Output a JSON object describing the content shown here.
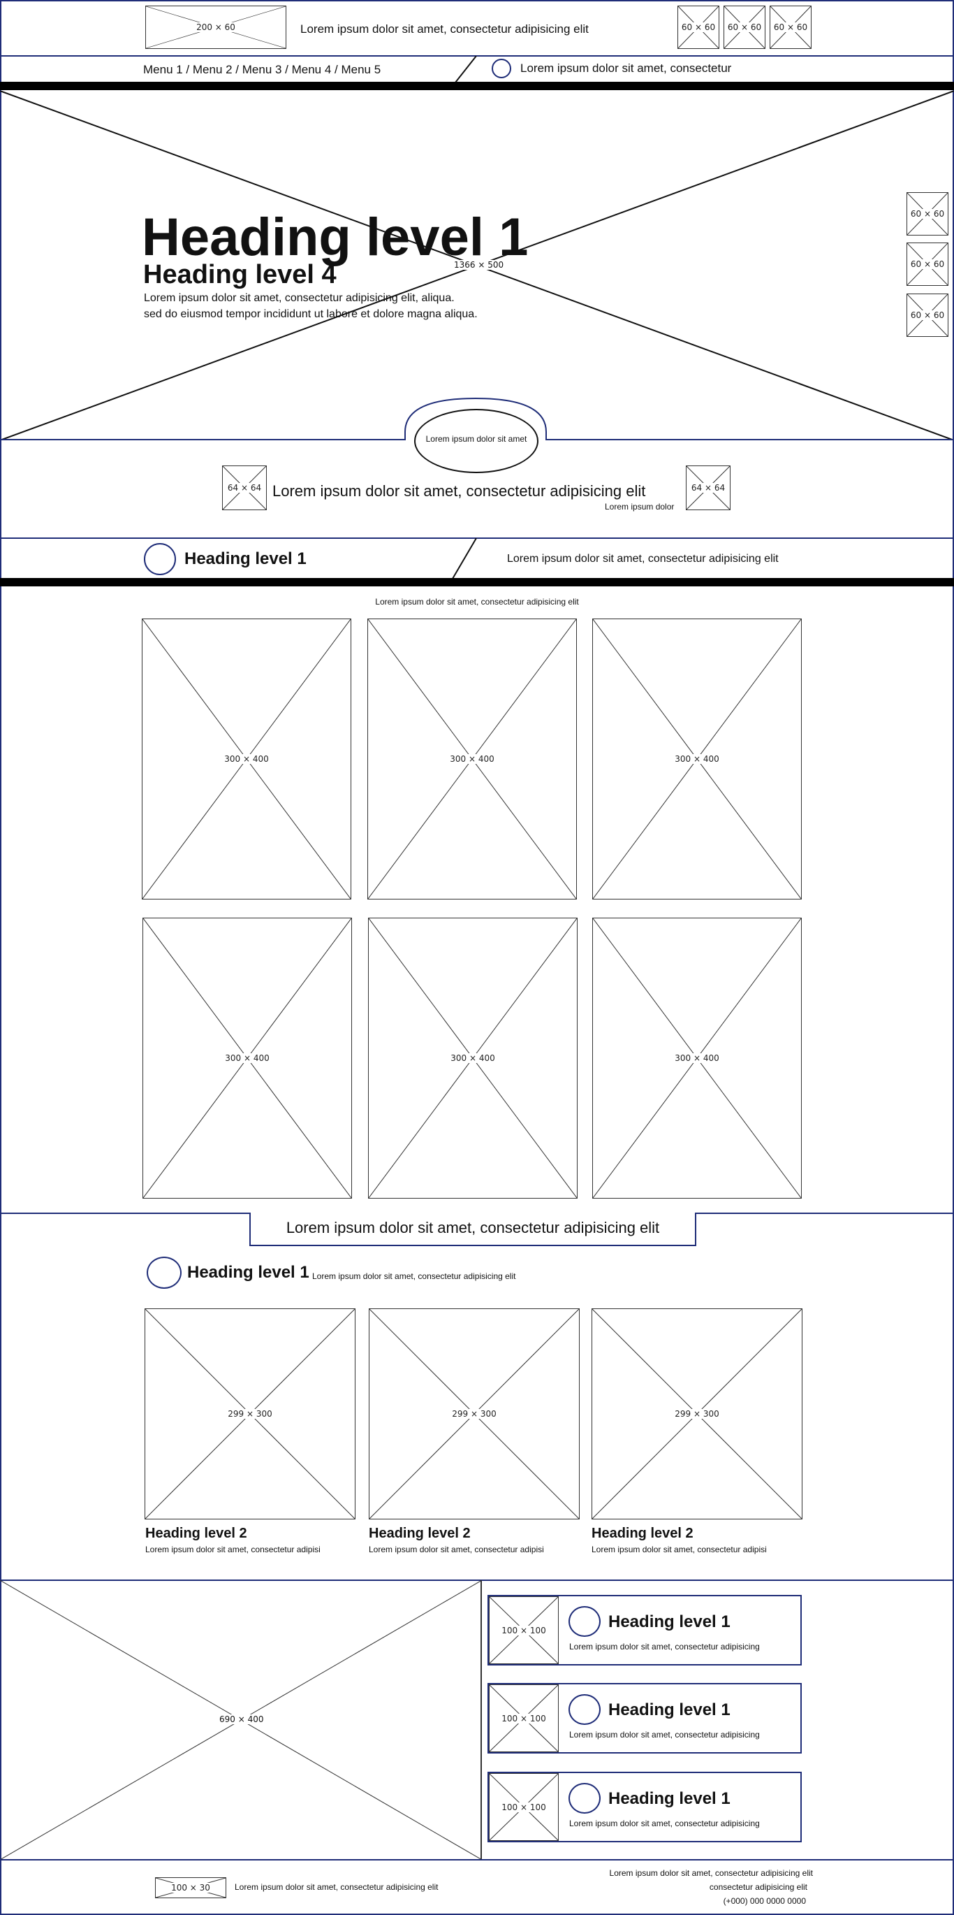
{
  "header": {
    "logo_caption": "200 × 60",
    "tagline": "Lorem ipsum dolor sit amet, consectetur adipisicing elit",
    "icons": [
      "60 × 60",
      "60 × 60",
      "60 × 60"
    ]
  },
  "nav": {
    "menu": "Menu 1 / Menu 2 / Menu 3 / Menu 4 / Menu 5",
    "info": "Lorem ipsum dolor sit amet, consectetur"
  },
  "hero": {
    "caption": "1366 × 500",
    "heading1": "Heading level 1",
    "heading4": "Heading level 4",
    "body_line1": "Lorem ipsum dolor sit amet, consectetur adipisicing elit, aliqua.",
    "body_line2": "sed do eiusmod tempor incididunt ut labore et dolore magna aliqua.",
    "side_icons": [
      "60 × 60",
      "60 × 60",
      "60 × 60"
    ],
    "pill_text": "Lorem ipsum dolor sit amet"
  },
  "strip": {
    "left_icon": "64 × 64",
    "text": "Lorem ipsum dolor sit amet, consectetur adipisicing elit",
    "small": "Lorem ipsum dolor",
    "right_icon": "64 × 64"
  },
  "section2": {
    "heading": "Heading level 1",
    "info": "Lorem ipsum dolor sit amet, consectetur adipisicing elit",
    "intro": "Lorem ipsum dolor sit amet, consectetur adipisicing elit",
    "grid": [
      "300 × 400",
      "300 × 400",
      "300 × 400",
      "300 × 400",
      "300 × 400",
      "300 × 400"
    ]
  },
  "section3": {
    "tab_title": "Lorem ipsum dolor sit amet, consectetur adipisicing elit",
    "heading": "Heading level 1",
    "subtitle": "Lorem ipsum dolor sit amet, consectetur adipisicing elit",
    "cards": [
      {
        "caption": "299 × 300",
        "title": "Heading level 2",
        "text": "Lorem ipsum dolor sit amet, consectetur adipisi"
      },
      {
        "caption": "299 × 300",
        "title": "Heading level 2",
        "text": "Lorem ipsum dolor sit amet, consectetur adipisi"
      },
      {
        "caption": "299 × 300",
        "title": "Heading level 2",
        "text": "Lorem ipsum dolor sit amet, consectetur adipisi"
      }
    ]
  },
  "section4": {
    "big_caption": "690 × 400",
    "items": [
      {
        "caption": "100 × 100",
        "title": "Heading level 1",
        "text": "Lorem ipsum dolor sit amet, consectetur adipisicing"
      },
      {
        "caption": "100 × 100",
        "title": "Heading level 1",
        "text": "Lorem ipsum dolor sit amet, consectetur adipisicing"
      },
      {
        "caption": "100 × 100",
        "title": "Heading level 1",
        "text": "Lorem ipsum dolor sit amet, consectetur adipisicing"
      }
    ]
  },
  "footer": {
    "logo_caption": "100 × 30",
    "text": "Lorem ipsum dolor sit amet, consectetur adipisicing elit",
    "right_line1": "Lorem ipsum dolor sit amet, consectetur adipisicing elit",
    "right_line2": "consectetur adipisicing elit",
    "phone": "(+000) 000 0000 0000"
  },
  "colors": {
    "accent": "#1f2d78",
    "ink": "#111111",
    "bar": "#000000"
  }
}
